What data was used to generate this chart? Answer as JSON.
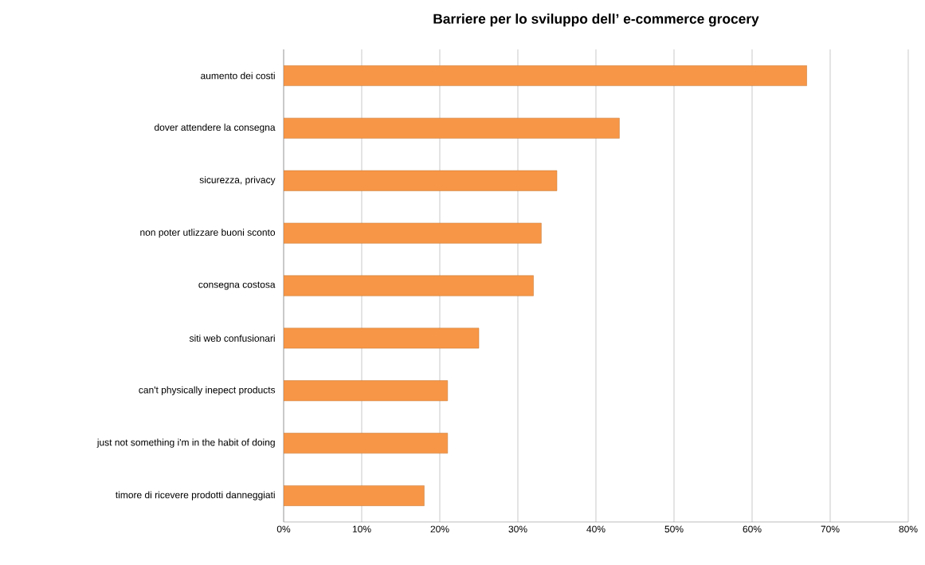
{
  "chart_data": {
    "type": "bar",
    "orientation": "horizontal",
    "title": "Barriere per lo sviluppo dell’ e-commerce grocery",
    "categories": [
      "aumento dei costi",
      "dover attendere la consegna",
      "sicurezza, privacy",
      "non poter utlizzare buoni sconto",
      "consegna costosa",
      "siti web confusionari",
      "can't physically inepect products",
      "just not something i'm in the habit of doing",
      "timore di ricevere prodotti danneggiati"
    ],
    "values": [
      67,
      43,
      35,
      33,
      32,
      25,
      21,
      21,
      18
    ],
    "color": "#f79646",
    "xlim": [
      0,
      80
    ],
    "xticks": [
      {
        "value": 0,
        "label": "0%"
      },
      {
        "value": 10,
        "label": "10%"
      },
      {
        "value": 20,
        "label": "20%"
      },
      {
        "value": 30,
        "label": "30%"
      },
      {
        "value": 40,
        "label": "40%"
      },
      {
        "value": 50,
        "label": "50%"
      },
      {
        "value": 60,
        "label": "60%"
      },
      {
        "value": 70,
        "label": "70%"
      },
      {
        "value": 80,
        "label": "80%"
      }
    ],
    "grid": "x"
  }
}
